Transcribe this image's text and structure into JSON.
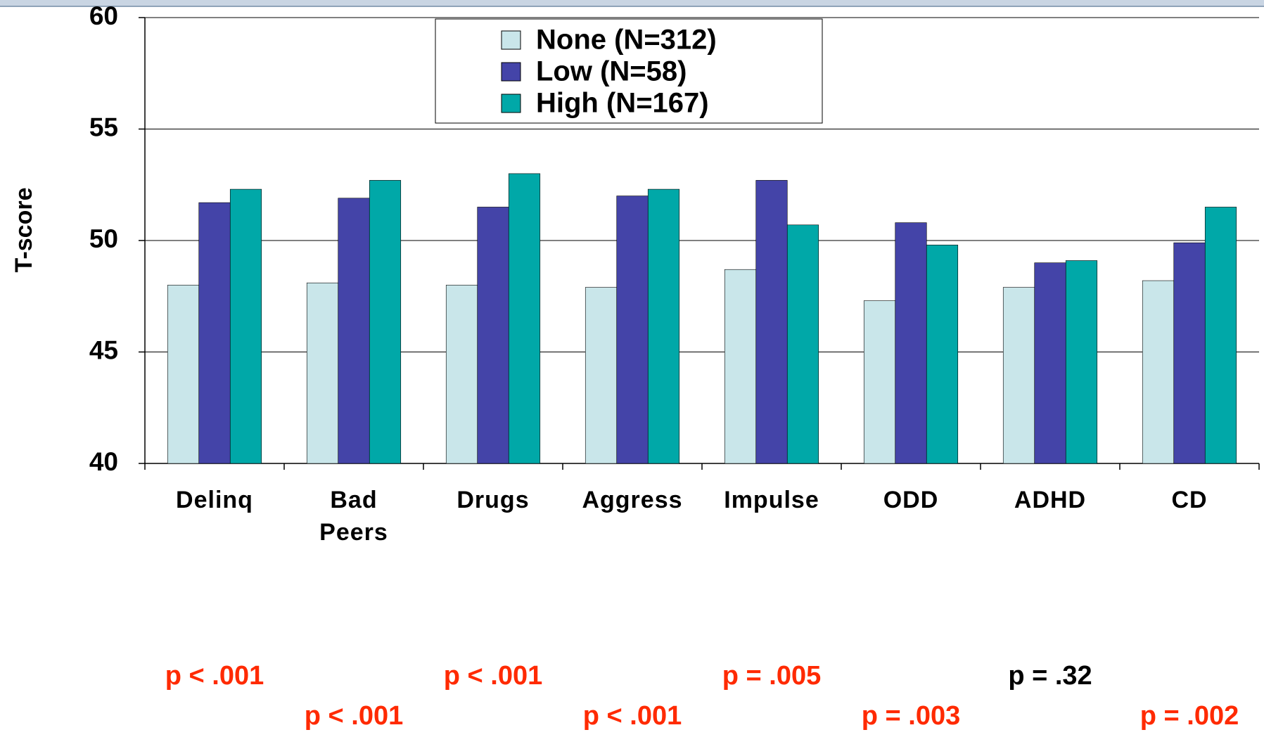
{
  "chart_data": {
    "type": "bar",
    "ylabel": "T-score",
    "categories": [
      "Delinq",
      "Bad Peers",
      "Drugs",
      "Aggress",
      "Impulse",
      "ODD",
      "ADHD",
      "CD"
    ],
    "series": [
      {
        "name": "None (N=312)",
        "color": "#c9e6ea",
        "values": [
          48.0,
          48.1,
          48.0,
          47.9,
          48.7,
          47.3,
          47.9,
          48.2
        ]
      },
      {
        "name": "Low (N=58)",
        "color": "#4444a8",
        "values": [
          51.7,
          51.9,
          51.5,
          52.0,
          52.7,
          50.8,
          49.0,
          49.9
        ]
      },
      {
        "name": "High (N=167)",
        "color": "#00a8a8",
        "values": [
          52.3,
          52.7,
          53.0,
          52.3,
          50.7,
          49.8,
          49.1,
          51.5
        ]
      }
    ],
    "ylim": [
      40,
      60
    ],
    "yticks": [
      40,
      45,
      50,
      55,
      60
    ],
    "grid": true,
    "annotations": [
      {
        "text": "p < .001",
        "color": "#ff2a00"
      },
      {
        "text": "p < .001",
        "color": "#ff2a00"
      },
      {
        "text": "p < .001",
        "color": "#ff2a00"
      },
      {
        "text": "p < .001",
        "color": "#ff2a00"
      },
      {
        "text": "p = .005",
        "color": "#ff2a00"
      },
      {
        "text": "p = .003",
        "color": "#ff2a00"
      },
      {
        "text": "p = .32",
        "color": "#000000"
      },
      {
        "text": "p = .002",
        "color": "#ff2a00"
      }
    ]
  }
}
